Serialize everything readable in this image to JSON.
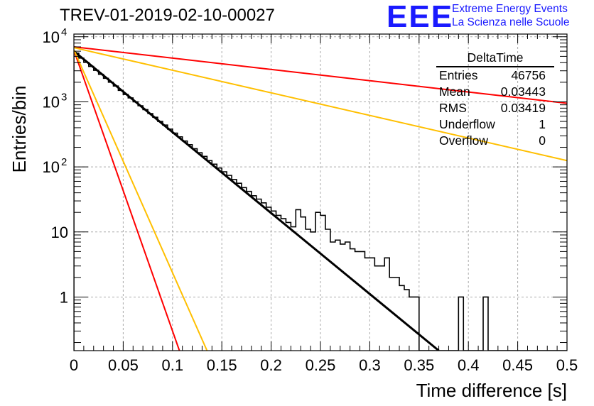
{
  "title": "TREV-01-2019-02-10-00027",
  "logo": {
    "mark": "EEE",
    "line1": "Extreme Energy Events",
    "line2": "La Scienza nelle Scuole"
  },
  "stats": {
    "name": "DeltaTime",
    "rows": [
      {
        "label": "Entries",
        "value": "46756"
      },
      {
        "label": "Mean",
        "value": "0.03443"
      },
      {
        "label": "RMS",
        "value": "0.03419"
      },
      {
        "label": "Underflow",
        "value": "1"
      },
      {
        "label": "Overflow",
        "value": "0"
      }
    ]
  },
  "chart_data": {
    "type": "line",
    "xlabel": "Time difference [s]",
    "ylabel": "Entries/bin",
    "xlim": [
      0,
      0.5
    ],
    "ylim": [
      0.15,
      11000
    ],
    "yscale": "log",
    "grid": true,
    "x_ticks": [
      "0",
      "0.05",
      "0.1",
      "0.15",
      "0.2",
      "0.25",
      "0.3",
      "0.35",
      "0.4",
      "0.45",
      "0.5"
    ],
    "y_ticks": [
      {
        "value": 10000,
        "base": "10",
        "exp": "4"
      },
      {
        "value": 1000,
        "base": "10",
        "exp": "3"
      },
      {
        "value": 100,
        "base": "10",
        "exp": "2"
      },
      {
        "value": 10,
        "base": "10",
        "exp": ""
      },
      {
        "value": 1,
        "base": "1",
        "exp": ""
      }
    ],
    "histogram": {
      "bin_width": 0.005,
      "values": [
        5600,
        4700,
        4050,
        3500,
        3050,
        2650,
        2300,
        2000,
        1750,
        1500,
        1300,
        1150,
        1000,
        870,
        760,
        660,
        580,
        500,
        440,
        380,
        330,
        290,
        250,
        220,
        190,
        165,
        145,
        125,
        110,
        96,
        84,
        74,
        64,
        56,
        48,
        42,
        36,
        32,
        28,
        24,
        21,
        18,
        16,
        14,
        12,
        22,
        17,
        11,
        10,
        20,
        18,
        11,
        7,
        7.5,
        6.5,
        7,
        5.5,
        5,
        5,
        4,
        4,
        3,
        3,
        4,
        2,
        2,
        1.5,
        1.3,
        1,
        1,
        0,
        0,
        0,
        0,
        0,
        0,
        0,
        0,
        1,
        0,
        0,
        0,
        0,
        1,
        0,
        0,
        0,
        0,
        0,
        0,
        0,
        0,
        0,
        0,
        0,
        0,
        0,
        0,
        0,
        0
      ]
    },
    "series": [
      {
        "color": "#000000",
        "x": [
          0,
          0.37
        ],
        "y": [
          6000,
          0.15
        ]
      },
      {
        "color": "#ff0000",
        "x": [
          0,
          0.107
        ],
        "y": [
          6200,
          0.15
        ]
      },
      {
        "color": "#ffbf00",
        "x": [
          0,
          0.135
        ],
        "y": [
          6300,
          0.15
        ]
      },
      {
        "color": "#ff0000",
        "x": [
          0,
          0.5
        ],
        "y": [
          7000,
          950
        ]
      },
      {
        "color": "#ffbf00",
        "x": [
          0,
          0.5
        ],
        "y": [
          6800,
          125
        ]
      }
    ]
  }
}
